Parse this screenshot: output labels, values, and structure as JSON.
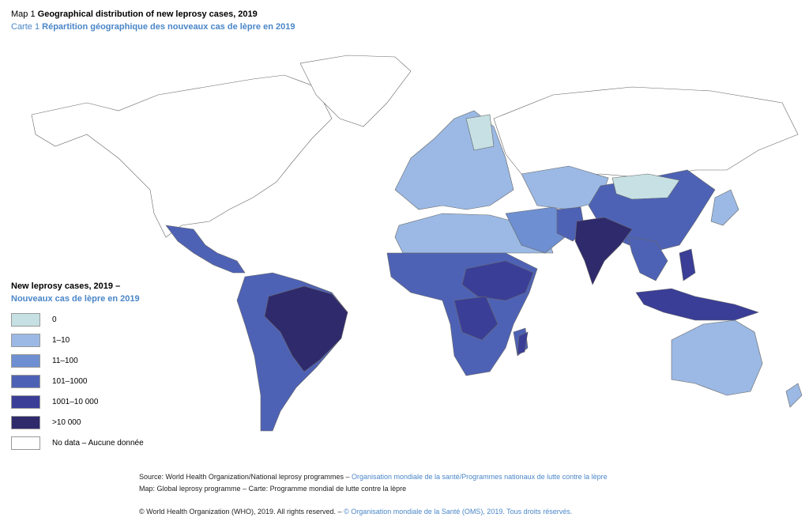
{
  "header": {
    "label": "Map 1",
    "title": "Geographical distribution of new leprosy cases, 2019",
    "label_fr": "Carte 1",
    "title_fr": "Répartition géographique des nouveaux cas de lèpre en 2019"
  },
  "legend": {
    "title": "New leprosy cases, 2019 –",
    "title_fr": "Nouveaux cas de lèpre en 2019",
    "items": [
      {
        "label": "0",
        "color": "#c6e0e3"
      },
      {
        "label": "1–10",
        "color": "#9bb9e4"
      },
      {
        "label": "11–100",
        "color": "#6e8fd1"
      },
      {
        "label": "101–1000",
        "color": "#4e62b5"
      },
      {
        "label": "1001–10 000",
        "color": "#3a3e97"
      },
      {
        "label": ">10 000",
        "color": "#2f2a6c"
      },
      {
        "label": "No data – Aucune donnée",
        "color": "#ffffff"
      }
    ]
  },
  "footer": {
    "source": "Source: World Health Organization/National leprosy programmes –",
    "source_fr": "Organisation mondiale de la santé/Programmes nationaux de lutte contre la lèpre",
    "map_credit": "Map: Global leprosy programme – Carte: Programme mondial de lutte contre la lèpre",
    "copyright": "© World Health Organization (WHO), 2019. All rights reserved. –",
    "copyright_fr": "© Organisation mondiale de la Santé (OMS), 2019. Tous droits réservés."
  }
}
